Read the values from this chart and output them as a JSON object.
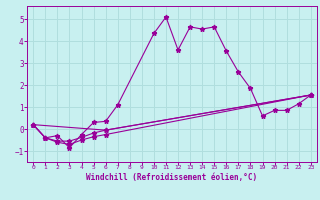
{
  "bg_color": "#c8f0f0",
  "line_color": "#990099",
  "grid_color": "#b0dede",
  "xlabel": "Windchill (Refroidissement éolien,°C)",
  "xlim": [
    -0.5,
    23.5
  ],
  "ylim": [
    -1.5,
    5.6
  ],
  "yticks": [
    -1,
    0,
    1,
    2,
    3,
    4,
    5
  ],
  "xticks": [
    0,
    1,
    2,
    3,
    4,
    5,
    6,
    7,
    8,
    9,
    10,
    11,
    12,
    13,
    14,
    15,
    16,
    17,
    18,
    19,
    20,
    21,
    22,
    23
  ],
  "lines": [
    {
      "x": [
        0,
        1,
        2,
        3,
        4,
        5,
        6,
        7,
        10,
        11,
        12,
        13,
        14,
        15,
        16,
        17,
        18,
        19,
        20,
        21,
        22,
        23
      ],
      "y": [
        0.2,
        -0.4,
        -0.3,
        -0.85,
        -0.25,
        0.3,
        0.35,
        1.1,
        4.35,
        5.1,
        3.6,
        4.65,
        4.55,
        4.65,
        3.55,
        2.6,
        1.85,
        0.6,
        0.85,
        0.85,
        1.15,
        1.55
      ]
    },
    {
      "x": [
        0,
        1,
        2,
        3,
        4,
        5,
        6,
        23
      ],
      "y": [
        0.2,
        -0.4,
        -0.6,
        -0.7,
        -0.5,
        -0.35,
        -0.25,
        1.55
      ]
    },
    {
      "x": [
        0,
        1,
        2,
        3,
        4,
        5,
        6,
        23
      ],
      "y": [
        0.2,
        -0.4,
        -0.55,
        -0.55,
        -0.38,
        -0.18,
        -0.05,
        1.55
      ]
    },
    {
      "x": [
        0,
        6,
        23
      ],
      "y": [
        0.2,
        -0.05,
        1.55
      ]
    }
  ]
}
